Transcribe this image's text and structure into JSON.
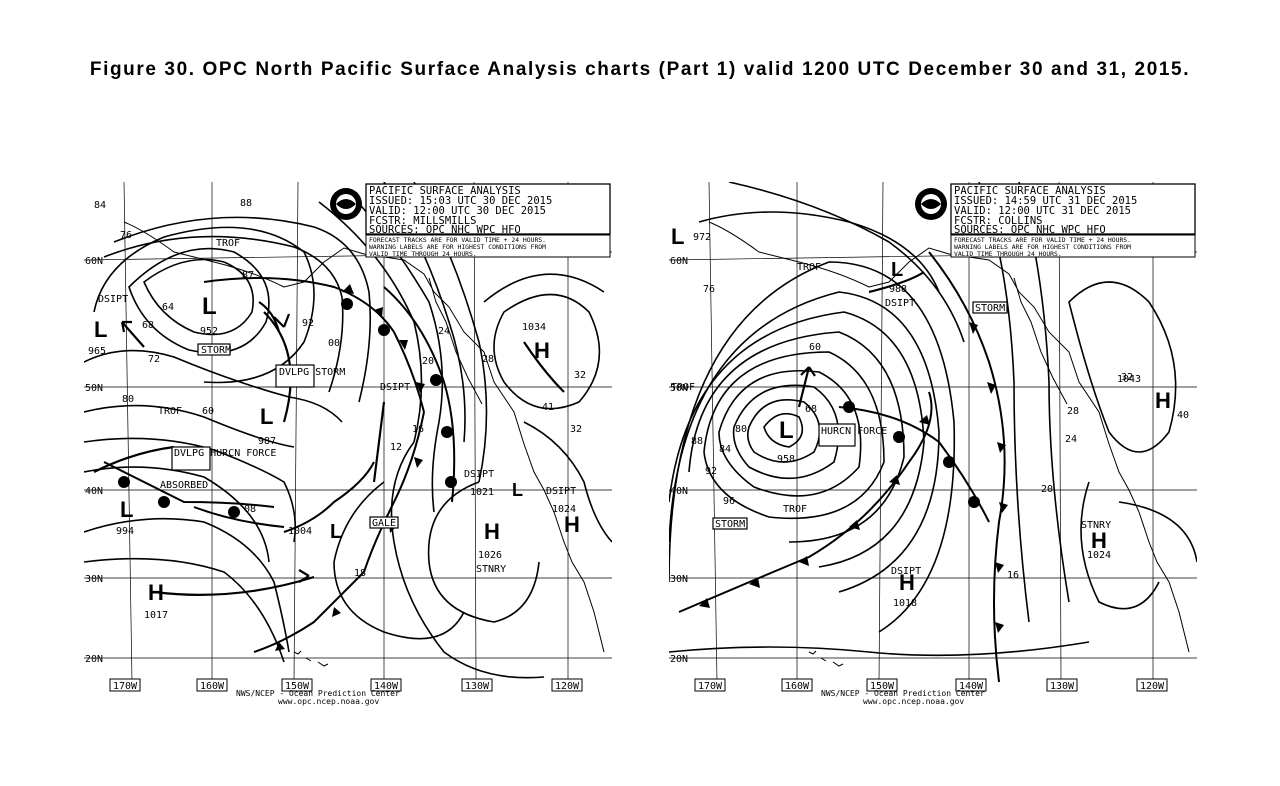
{
  "caption": "Figure 30.  OPC North Pacific Surface Analysis charts (Part 1) valid  1200 UTC December 30 and 31, 2015.",
  "maps": [
    {
      "header": [
        "PACIFIC SURFACE ANALYSIS",
        "ISSUED: 15:03 UTC 30 DEC 2015",
        "VALID:  12:00 UTC 30 DEC 2015",
        "FCSTR:  MILLSMILLS",
        "SOURCES: OPC NHC WPC HFO"
      ],
      "note": [
        "FORECAST TRACKS ARE FOR VALID TIME + 24 HOURS.",
        "WARNING LABELS ARE FOR HIGHEST CONDITIONS FROM",
        "VALID TIME THROUGH 24 HOURS."
      ],
      "lat_labels": [
        "60N",
        "50N",
        "40N",
        "30N",
        "20N"
      ],
      "lon_labels": [
        "170W",
        "160W",
        "150W",
        "140W",
        "130W",
        "120W"
      ],
      "credit": [
        "NWS/NCEP - Ocean Prediction Center",
        "www.opc.ncep.noaa.gov"
      ],
      "centers": [
        {
          "type": "L",
          "pressure": "952"
        },
        {
          "type": "L",
          "pressure": "965"
        },
        {
          "type": "L",
          "pressure": "987"
        },
        {
          "type": "L",
          "pressure": "994"
        },
        {
          "type": "L",
          "pressure": "1004"
        },
        {
          "type": "L",
          "pressure": "1021"
        },
        {
          "type": "H",
          "pressure": "1034"
        },
        {
          "type": "H",
          "pressure": "1026"
        },
        {
          "type": "H",
          "pressure": "1024"
        },
        {
          "type": "H",
          "pressure": "1017"
        }
      ],
      "warnings": [
        "STORM",
        "DVLPG STORM",
        "DVLPG HURCN FORCE",
        "GALE"
      ],
      "text_labels": [
        "TROF",
        "DSIPT",
        "ABSORBED",
        "STNRY",
        "87",
        "60",
        "18",
        "41",
        "32"
      ],
      "isobar_labels": [
        "84",
        "88",
        "92",
        "00",
        "76",
        "68",
        "64",
        "72",
        "80",
        "08",
        "12",
        "16",
        "20",
        "24",
        "28",
        "32"
      ]
    },
    {
      "header": [
        "PACIFIC SURFACE ANALYSIS",
        "ISSUED: 14:59 UTC 31 DEC 2015",
        "VALID:  12:00 UTC 31 DEC 2015",
        "FCSTR:  COLLINS",
        "SOURCES: OPC NHC WPC HFO"
      ],
      "note": [
        "FORECAST TRACKS ARE FOR VALID TIME + 24 HOURS.",
        "WARNING LABELS ARE FOR HIGHEST CONDITIONS FROM",
        "VALID TIME THROUGH 24 HOURS."
      ],
      "lat_labels": [
        "60N",
        "50N",
        "40N",
        "30N",
        "20N"
      ],
      "lon_labels": [
        "170W",
        "160W",
        "150W",
        "140W",
        "130W",
        "120W"
      ],
      "credit": [
        "NWS/NCEP - Ocean Prediction Center",
        "www.opc.ncep.noaa.gov"
      ],
      "centers": [
        {
          "type": "L",
          "pressure": "972"
        },
        {
          "type": "L",
          "pressure": "988"
        },
        {
          "type": "L",
          "pressure": "958"
        },
        {
          "type": "H",
          "pressure": "1043"
        },
        {
          "type": "H",
          "pressure": "1024"
        },
        {
          "type": "H",
          "pressure": "1018"
        }
      ],
      "warnings": [
        "STORM",
        "STORM",
        "HURCN FORCE"
      ],
      "text_labels": [
        "TROF",
        "DSIPT",
        "STNRY",
        "60"
      ],
      "isobar_labels": [
        "76",
        "80",
        "84",
        "88",
        "92",
        "96",
        "68",
        "16",
        "20",
        "24",
        "28",
        "32",
        "40"
      ]
    }
  ]
}
